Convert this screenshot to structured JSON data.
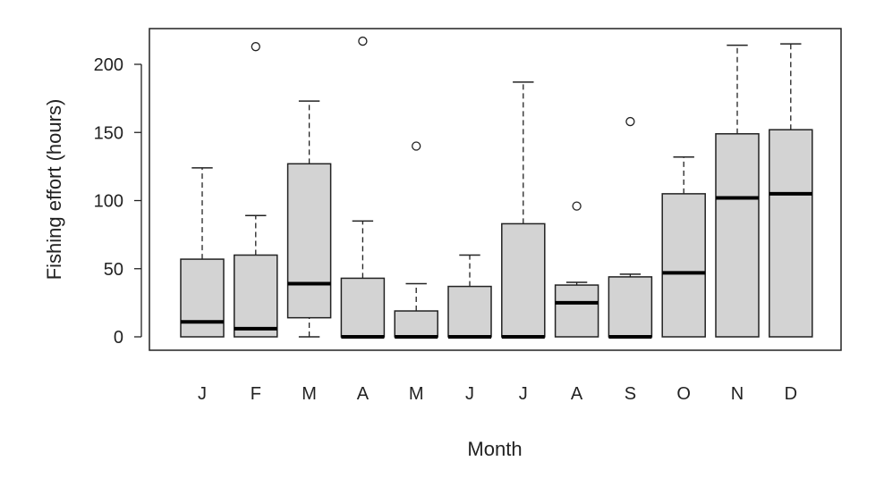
{
  "chart_data": {
    "type": "boxplot",
    "title": "",
    "xlabel": "Month",
    "ylabel": "Fishing effort (hours)",
    "categories": [
      "J",
      "F",
      "M",
      "A",
      "M",
      "J",
      "J",
      "A",
      "S",
      "O",
      "N",
      "D"
    ],
    "yticks": [
      0,
      50,
      100,
      150,
      200
    ],
    "ylim": [
      -10,
      226
    ],
    "grid": false,
    "box_color": "#d3d3d3",
    "series": [
      {
        "min": 0,
        "q1": 0,
        "median": 11,
        "q3": 57,
        "max": 124,
        "outliers": []
      },
      {
        "min": 0,
        "q1": 0,
        "median": 6,
        "q3": 60,
        "max": 89,
        "outliers": [
          213
        ]
      },
      {
        "min": 0,
        "q1": 14,
        "median": 39,
        "q3": 127,
        "max": 173,
        "outliers": []
      },
      {
        "min": 0,
        "q1": 0,
        "median": 0,
        "q3": 43,
        "max": 85,
        "outliers": [
          217
        ]
      },
      {
        "min": 0,
        "q1": 0,
        "median": 0,
        "q3": 19,
        "max": 39,
        "outliers": [
          140
        ]
      },
      {
        "min": 0,
        "q1": 0,
        "median": 0,
        "q3": 37,
        "max": 60,
        "outliers": []
      },
      {
        "min": 0,
        "q1": 0,
        "median": 0,
        "q3": 83,
        "max": 187,
        "outliers": []
      },
      {
        "min": 0,
        "q1": 0,
        "median": 25,
        "q3": 38,
        "max": 40,
        "outliers": [
          96
        ]
      },
      {
        "min": 0,
        "q1": 0,
        "median": 0,
        "q3": 44,
        "max": 46,
        "outliers": [
          158
        ]
      },
      {
        "min": 0,
        "q1": 0,
        "median": 47,
        "q3": 105,
        "max": 132,
        "outliers": []
      },
      {
        "min": 0,
        "q1": 0,
        "median": 102,
        "q3": 149,
        "max": 214,
        "outliers": []
      },
      {
        "min": 0,
        "q1": 0,
        "median": 105,
        "q3": 152,
        "max": 215,
        "outliers": []
      }
    ]
  }
}
